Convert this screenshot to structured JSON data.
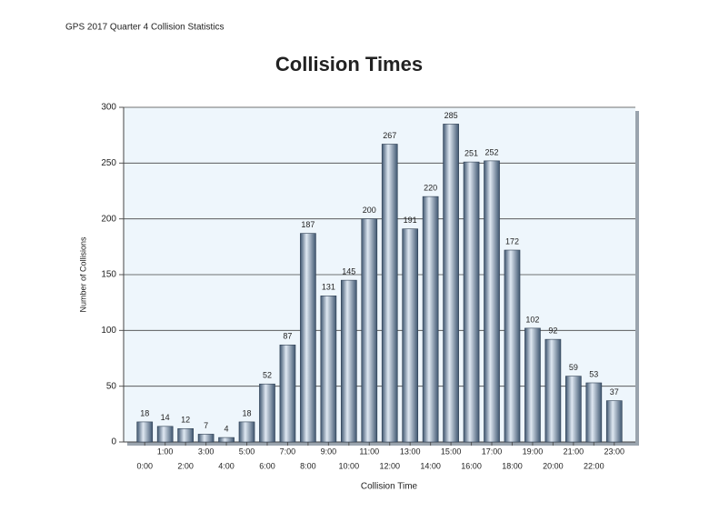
{
  "header": "GPS 2017 Quarter 4 Collision Statistics",
  "chart_data": {
    "type": "bar",
    "title": "Collision Times",
    "x_label": "Collision Time",
    "y_label": "Number of Collisions",
    "categories": [
      "0:00",
      "1:00",
      "2:00",
      "3:00",
      "4:00",
      "5:00",
      "6:00",
      "7:00",
      "8:00",
      "9:00",
      "10:00",
      "11:00",
      "12:00",
      "13:00",
      "14:00",
      "15:00",
      "16:00",
      "17:00",
      "18:00",
      "19:00",
      "20:00",
      "21:00",
      "22:00",
      "23:00"
    ],
    "values": [
      18,
      14,
      12,
      7,
      4,
      18,
      52,
      87,
      187,
      131,
      145,
      200,
      267,
      191,
      220,
      285,
      251,
      252,
      172,
      102,
      92,
      59,
      53,
      37
    ],
    "color": "#5b7590",
    "ylim": [
      0,
      300
    ],
    "yticks": [
      0,
      50,
      100,
      150,
      200,
      250,
      300
    ],
    "grid": true
  }
}
